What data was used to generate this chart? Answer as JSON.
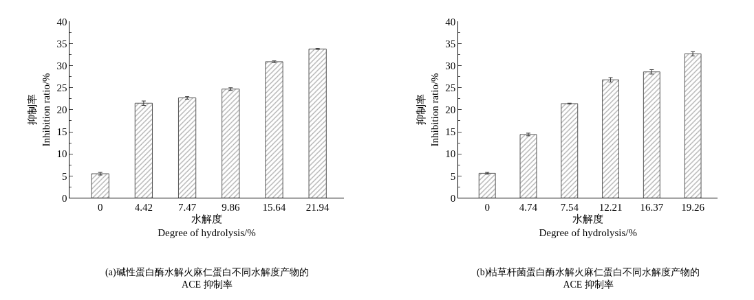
{
  "chart_data": [
    {
      "type": "bar",
      "title": "(a)碱性蛋白酶水解火麻仁蛋白不同水解度产物的\nACE 抑制率",
      "xlabel": "水解度\nDegree of hydrolysis/%",
      "ylabel": "抑制率\nInhibition ratio/%",
      "categories": [
        "0",
        "4.42",
        "7.47",
        "9.86",
        "15.64",
        "21.94"
      ],
      "values": [
        5.5,
        21.5,
        22.7,
        24.7,
        30.9,
        33.8
      ],
      "errors": [
        0.3,
        0.5,
        0.3,
        0.3,
        0.2,
        0.1
      ],
      "color": "#555555",
      "ylim": [
        0,
        40
      ],
      "yticks": [
        0,
        5,
        10,
        15,
        20,
        25,
        30,
        35,
        40
      ]
    },
    {
      "type": "bar",
      "title": "(b)枯草杆菌蛋白酶水解火麻仁蛋白不同水解度产物的\nACE 抑制率",
      "xlabel": "水解度\nDegree of hydrolysis/%",
      "ylabel": "抑制率\nInhibition ratio/%",
      "categories": [
        "0",
        "4.74",
        "7.54",
        "12.21",
        "16.37",
        "19.26"
      ],
      "values": [
        5.6,
        14.4,
        21.4,
        26.8,
        28.6,
        32.7
      ],
      "errors": [
        0.2,
        0.3,
        0.1,
        0.5,
        0.5,
        0.5
      ],
      "color": "#555555",
      "ylim": [
        0,
        40
      ],
      "yticks": [
        0,
        5,
        10,
        15,
        20,
        25,
        30,
        35,
        40
      ]
    }
  ]
}
